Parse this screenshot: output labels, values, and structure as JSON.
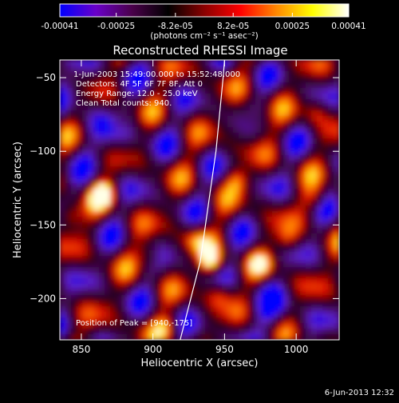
{
  "colorbar": {
    "tick_labels": [
      "-0.00041",
      "-0.00025",
      "-8.2e-05",
      "8.2e-05",
      "0.00025",
      "0.00041"
    ],
    "tick_values": [
      -0.00041,
      -0.00025,
      -8.2e-05,
      8.2e-05,
      0.00025,
      0.00041
    ],
    "range": [
      -0.00041,
      0.00041
    ],
    "unit_label": "(photons cm⁻² s⁻¹ asec⁻²)",
    "colors": [
      "#0000ff",
      "#6a00c8",
      "#4a004a",
      "#000000",
      "#8a0000",
      "#ff0000",
      "#ff8800",
      "#ffff00",
      "#ffffff"
    ]
  },
  "chart_data": {
    "type": "heatmap",
    "title": "Reconstructed RHESSI Image",
    "xlabel": "Heliocentric X (arcsec)",
    "ylabel": "Heliocentric Y (arcsec)",
    "xlim": [
      835,
      1030
    ],
    "ylim": [
      -228,
      -38
    ],
    "x_ticks": [
      850,
      900,
      950,
      1000
    ],
    "y_ticks": [
      -50,
      -100,
      -150,
      -200
    ],
    "x_tick_labels": [
      "850",
      "900",
      "950",
      "1000"
    ],
    "y_tick_labels": [
      "−50",
      "−100",
      "−150",
      "−200"
    ],
    "annotations": [
      "1-Jun-2003 15:49:00.000 to 15:52:48.000",
      "Detectors: 4F 5F 6F 7F 8F, Att 0",
      "Energy Range: 12.0 - 25.0 keV",
      "Clean    Total counts: 940."
    ],
    "peak_label": "Position of Peak = [940,-175]",
    "peak": [
      940,
      -175
    ],
    "limb_line": [
      [
        919,
        -228
      ],
      [
        933,
        -175
      ],
      [
        944,
        -100
      ],
      [
        949,
        -50
      ],
      [
        950,
        -38
      ]
    ],
    "grid": false
  },
  "footer": {
    "timestamp": "6-Jun-2013 12:32"
  }
}
